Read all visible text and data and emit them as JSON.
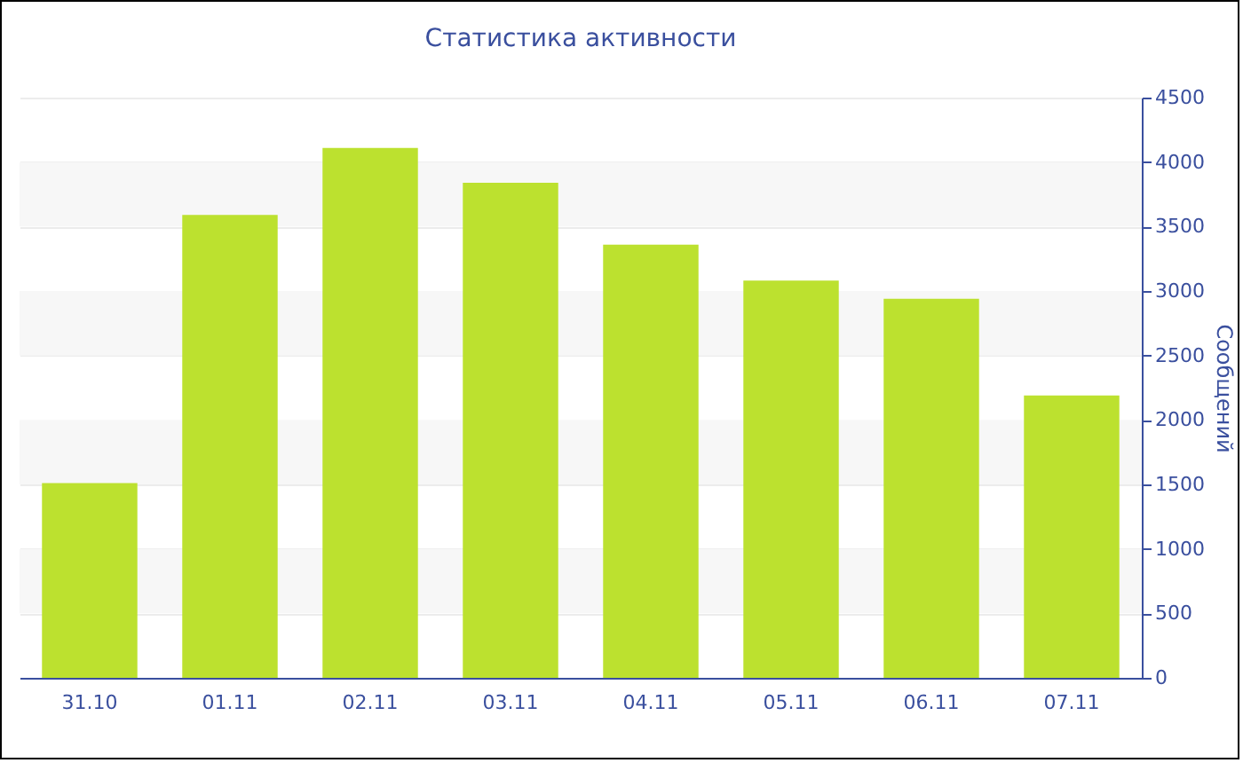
{
  "chart_data": {
    "type": "bar",
    "title": "Статистика активности",
    "ylabel": "Сообщений",
    "categories": [
      "31.10",
      "01.11",
      "02.11",
      "03.11",
      "04.11",
      "05.11",
      "06.11",
      "07.11"
    ],
    "values": [
      1510,
      3590,
      4110,
      3840,
      3360,
      3080,
      2940,
      2190
    ],
    "color": "#bce12f",
    "ylim": [
      0,
      4500
    ],
    "yticks": [
      0,
      500,
      1000,
      1500,
      2000,
      2500,
      3000,
      3500,
      4000,
      4500
    ],
    "grid": true
  }
}
